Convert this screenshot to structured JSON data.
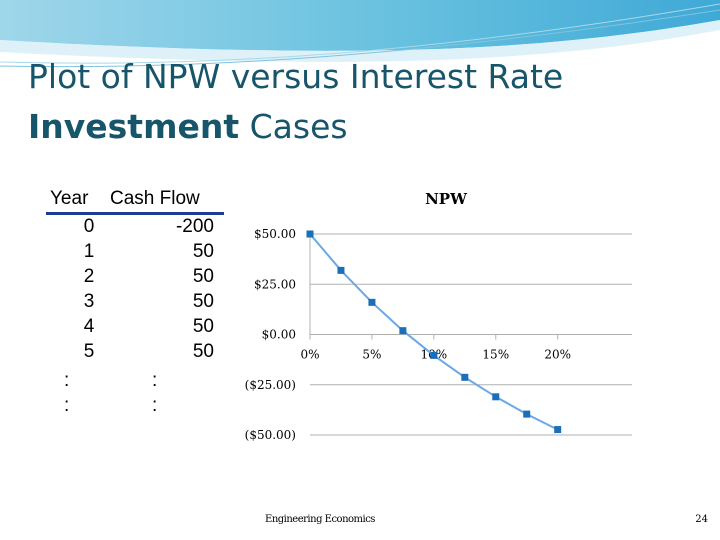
{
  "slide": {
    "title_line1": "Plot of NPW versus Interest Rate",
    "title_line2_bold": "Investment",
    "title_line2_rest": " Cases",
    "footer": "Engineering Economics",
    "page_number": "24"
  },
  "cash_flow_table": {
    "headers": [
      "Year",
      "Cash Flow"
    ],
    "rows": [
      {
        "year": "0",
        "cash_flow": "-200"
      },
      {
        "year": "1",
        "cash_flow": "50"
      },
      {
        "year": "2",
        "cash_flow": "50"
      },
      {
        "year": "3",
        "cash_flow": "50"
      },
      {
        "year": "4",
        "cash_flow": "50"
      },
      {
        "year": "5",
        "cash_flow": "50"
      }
    ],
    "continuation": ":"
  },
  "chart_data": {
    "type": "line",
    "title": "NPW",
    "x": [
      0,
      2.5,
      5,
      7.5,
      10,
      12.5,
      15,
      17.5,
      20
    ],
    "series": [
      {
        "values": [
          50.0,
          31.9,
          16.0,
          1.9,
          -10.4,
          -21.3,
          -31.0,
          -39.6,
          -47.3
        ]
      }
    ],
    "x_ticks": [
      0,
      5,
      10,
      15,
      20
    ],
    "x_tick_labels": [
      "0%",
      "5%",
      "10%",
      "15%",
      "20%"
    ],
    "y_ticks": [
      50,
      25,
      0,
      -25,
      -50
    ],
    "y_tick_labels": [
      "$50.00",
      "$25.00",
      "$0.00",
      "($25.00)",
      "($50.00)"
    ],
    "xlim": [
      0,
      26
    ],
    "ylim": [
      -50,
      50
    ],
    "grid": true,
    "colors": {
      "line": "#6aa8e6",
      "marker": "#1a6fb8",
      "grid": "#b0b0b0"
    }
  }
}
